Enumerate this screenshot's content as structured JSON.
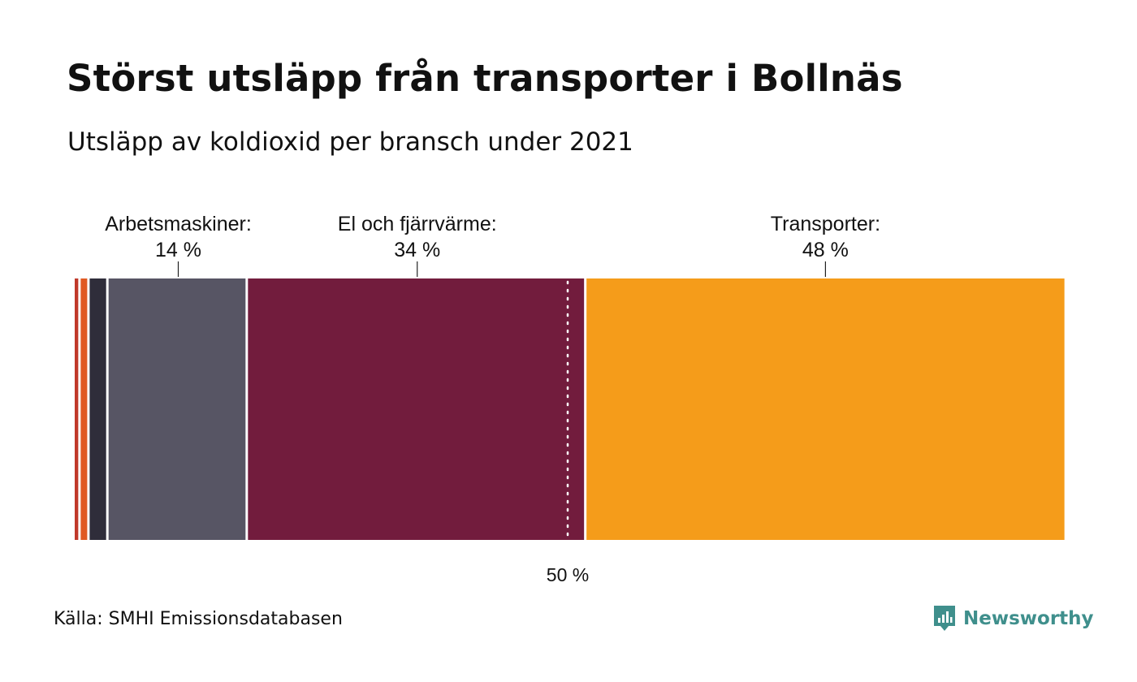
{
  "title": "Störst utsläpp från transporter i Bollnäs",
  "subtitle": "Utsläpp av koldioxid per bransch under 2021",
  "source": "Källa: SMHI Emissionsdatabasen",
  "brand": {
    "name": "Newsworthy",
    "icon": "newsworthy-chart-bubble-icon",
    "color": "#3f8f8c"
  },
  "chart_data": {
    "type": "bar",
    "orientation": "horizontal-stacked",
    "unit": "%",
    "xlim": [
      0,
      100
    ],
    "segments": [
      {
        "name": "",
        "value": 0.6,
        "color": "#c0392b"
      },
      {
        "name": "",
        "value": 0.9,
        "color": "#e05a23"
      },
      {
        "name": "",
        "value": 1.9,
        "color": "#2f2d3a"
      },
      {
        "name": "Arbetsmaskiner",
        "value": 14,
        "color": "#575564",
        "label": "Arbetsmaskiner:",
        "value_label": "14 %"
      },
      {
        "name": "El och fjärrvärme",
        "value": 34,
        "color": "#721c3d",
        "label": "El och fjärrvärme:",
        "value_label": "34 %"
      },
      {
        "name": "Transporter",
        "value": 48,
        "color": "#f59c1a",
        "label": "Transporter:",
        "value_label": "48 %"
      }
    ],
    "reference_line": {
      "value": 50,
      "label": "50 %",
      "style": "dotted",
      "color": "#ffffff"
    }
  }
}
